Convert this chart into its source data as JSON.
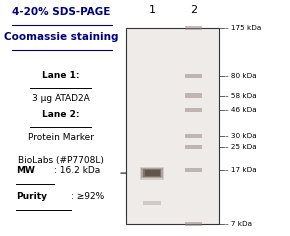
{
  "title_line1": "4-20% SDS-PAGE",
  "title_line2": "Coomassie staining",
  "lane1_label": "Lane 1",
  "lane1_desc": "3 μg ATAD2A",
  "lane2_label": "Lane 2",
  "lane2_desc1": "Protein Marker",
  "lane2_desc2": "BioLabs (#P7708L)",
  "mw_label": "MW",
  "mw_value": ": 16.2 kDa",
  "purity_label": "Purity",
  "purity_value": ": ≥92%",
  "marker_bands": [
    175,
    80,
    58,
    46,
    30,
    25,
    17,
    7
  ],
  "marker_labels": [
    "175 kDa",
    "80 kDa",
    "58 kDa",
    "46 kDa",
    "30 kDa",
    "25 kDa",
    "17 kDa",
    "7 kDa"
  ],
  "gel_bg": "#eeebe8",
  "band_color_sample": "#5a4a42",
  "band_color_marker": "#9a8a82",
  "lane1_num": "1",
  "lane2_num": "2",
  "arrow_color": "#555555",
  "bg_color": "#ffffff",
  "title_color": "#000080"
}
